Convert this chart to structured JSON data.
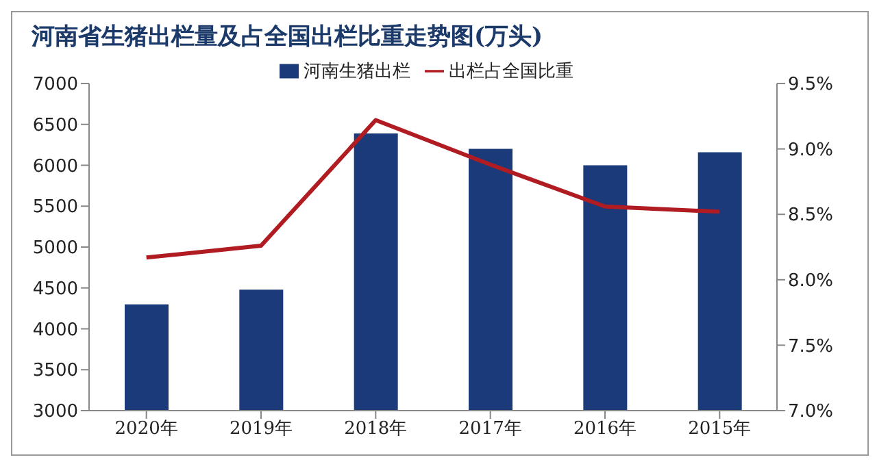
{
  "chart_data": {
    "type": "bar",
    "title": "河南省生猪出栏量及占全国出栏比重走势图(万头)",
    "categories": [
      "2020年",
      "2019年",
      "2018年",
      "2017年",
      "2016年",
      "2015年"
    ],
    "series": [
      {
        "name": "河南生猪出栏",
        "color": "#1b3a7a",
        "values": [
          4300,
          4480,
          6390,
          6200,
          6000,
          6160
        ]
      },
      {
        "name": "出栏占全国比重",
        "type": "line",
        "axis": "y2",
        "color": "#b01c22",
        "values": [
          8.17,
          8.26,
          9.22,
          8.88,
          8.56,
          8.52
        ]
      }
    ],
    "ylim": [
      3000,
      7000
    ],
    "yticks": [
      3000,
      3500,
      4000,
      4500,
      5000,
      5500,
      6000,
      6500,
      7000
    ],
    "y2lim": [
      7.0,
      9.5
    ],
    "y2ticks": [
      {
        "value": 7.0,
        "label": "7.0%"
      },
      {
        "value": 7.5,
        "label": "7.5%"
      },
      {
        "value": 8.0,
        "label": "8.0%"
      },
      {
        "value": 8.5,
        "label": "8.5%"
      },
      {
        "value": 9.0,
        "label": "9.0%"
      },
      {
        "value": 9.5,
        "label": "9.5%"
      }
    ],
    "grid": false,
    "legend": "top",
    "marker": "none"
  }
}
